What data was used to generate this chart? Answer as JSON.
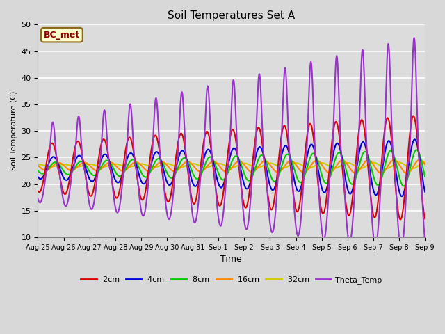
{
  "title": "Soil Temperatures Set A",
  "xlabel": "Time",
  "ylabel": "Soil Temperature (C)",
  "ylim": [
    10,
    50
  ],
  "annotation_text": "BC_met",
  "series": {
    "-2cm": {
      "color": "#dd0000",
      "lw": 1.5
    },
    "-4cm": {
      "color": "#0000dd",
      "lw": 1.5
    },
    "-8cm": {
      "color": "#00cc00",
      "lw": 1.5
    },
    "-16cm": {
      "color": "#ff8800",
      "lw": 1.5
    },
    "-32cm": {
      "color": "#cccc00",
      "lw": 1.5
    },
    "Theta_Temp": {
      "color": "#9933cc",
      "lw": 1.5
    }
  },
  "tick_labels": [
    "Aug 25",
    "Aug 26",
    "Aug 27",
    "Aug 28",
    "Aug 29",
    "Aug 30",
    "Aug 31",
    "Sep 1",
    "Sep 2",
    "Sep 3",
    "Sep 4",
    "Sep 5",
    "Sep 6",
    "Sep 7",
    "Sep 8",
    "Sep 9"
  ],
  "n_days": 16,
  "base_temp": 23.0,
  "yticks": [
    10,
    15,
    20,
    25,
    30,
    35,
    40,
    45,
    50
  ]
}
